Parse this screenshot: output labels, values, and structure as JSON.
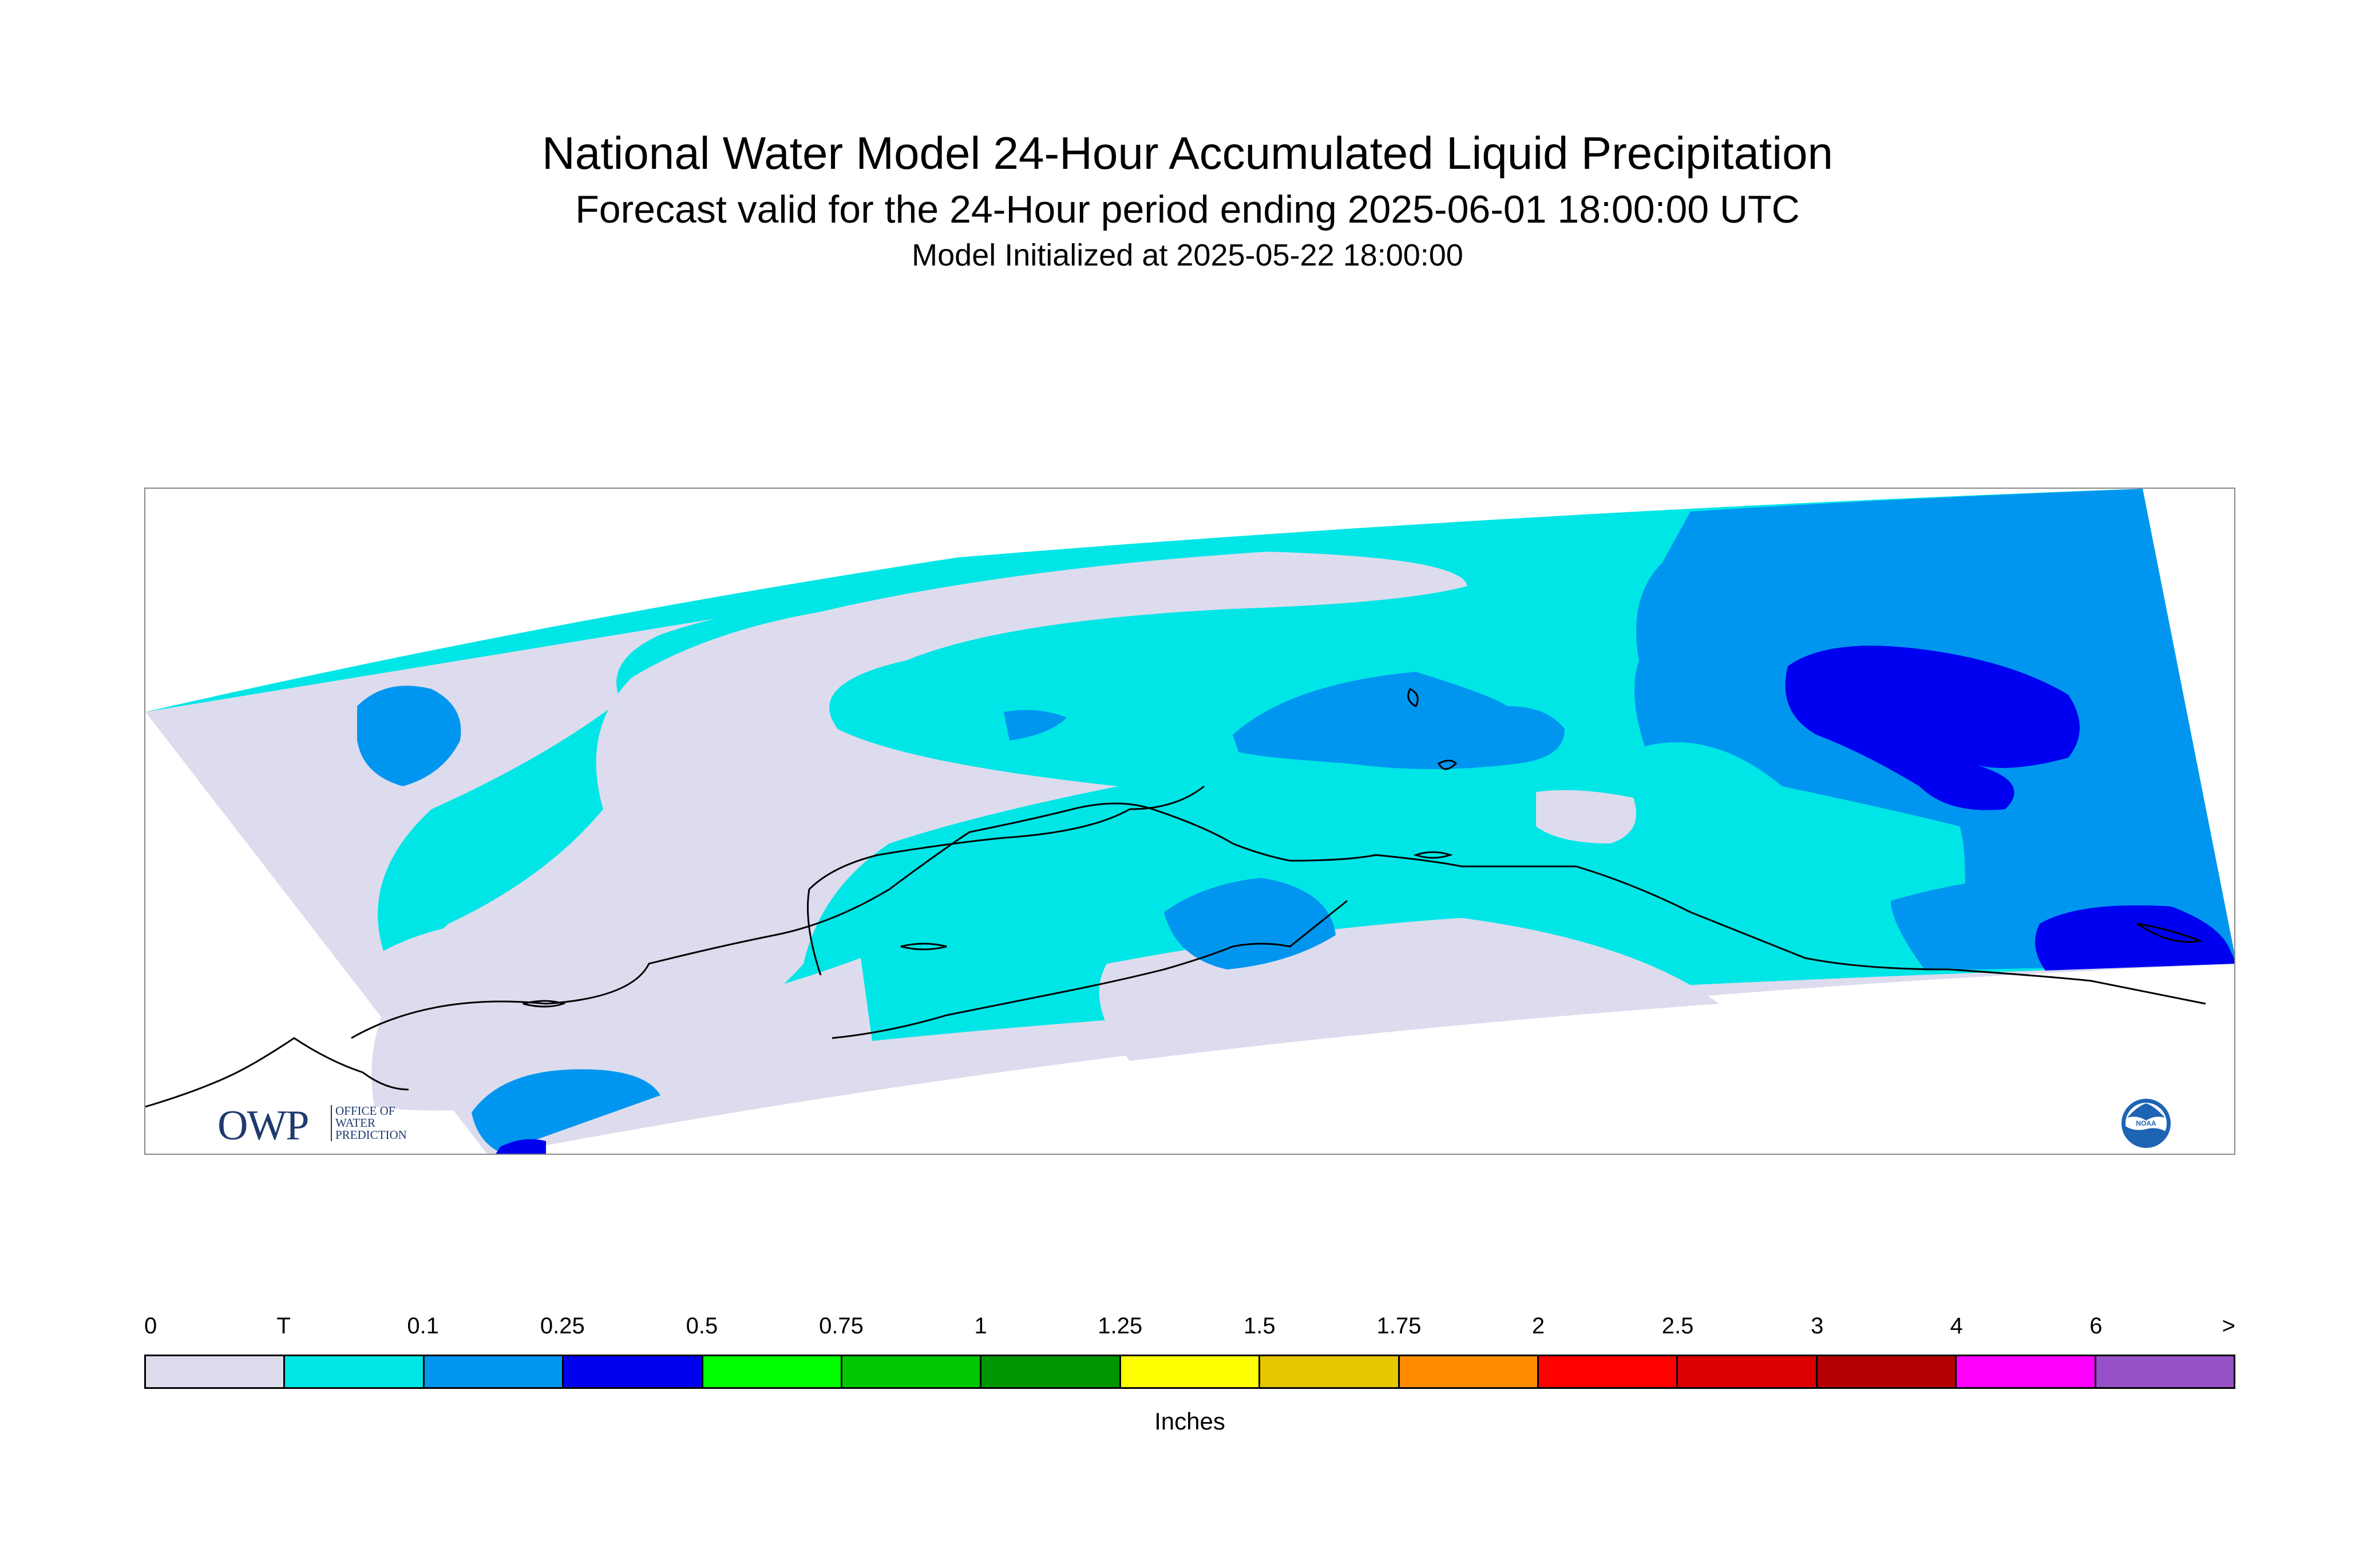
{
  "title": "National Water Model 24-Hour Accumulated Liquid Precipitation",
  "subtitle": "Forecast valid for the 24-Hour period ending 2025-06-01 18:00:00 UTC",
  "model_init": "Model Initialized at 2025-05-22 18:00:00",
  "logos": {
    "owp_main": "OWP",
    "owp_line1": "OFFICE OF",
    "owp_line2": "WATER",
    "owp_line3": "PREDICTION",
    "noaa": "NOAA"
  },
  "legend": {
    "tick_labels": [
      "0",
      "T",
      "0.1",
      "0.25",
      "0.5",
      "0.75",
      "1",
      "1.25",
      "1.5",
      "1.75",
      "2",
      "2.5",
      "3",
      "4",
      "6",
      ">"
    ],
    "colors": [
      "#dcdcee",
      "#00e6e6",
      "#0096f0",
      "#0000f0",
      "#00ff00",
      "#00c800",
      "#009600",
      "#ffff00",
      "#e6c800",
      "#ff8c00",
      "#ff0000",
      "#dc0000",
      "#b40000",
      "#ff00ff",
      "#9650c8"
    ],
    "units": "Inches"
  },
  "map": {
    "colors": {
      "trace": "#dcdcee",
      "low": "#00e6e6",
      "mid": "#0096f0",
      "high": "#0000f0",
      "coast": "#000000"
    }
  }
}
